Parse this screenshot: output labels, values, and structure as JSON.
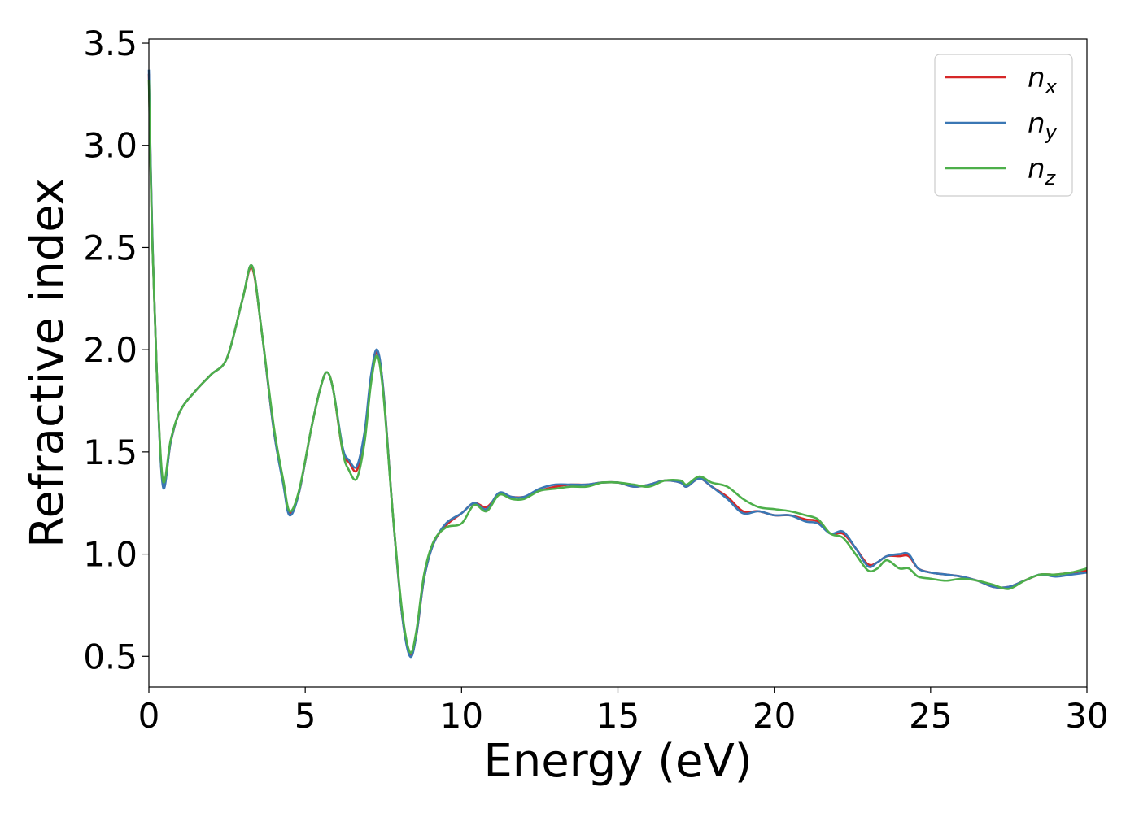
{
  "chart_data": {
    "type": "line",
    "xlabel": "Energy (eV)",
    "ylabel": "Refractive index",
    "xlim": [
      0,
      30
    ],
    "ylim": [
      0.35,
      3.52
    ],
    "xticks": [
      0,
      5,
      10,
      15,
      20,
      25,
      30
    ],
    "xtick_labels": [
      "0",
      "5",
      "10",
      "15",
      "20",
      "25",
      "30"
    ],
    "yticks": [
      0.5,
      1.0,
      1.5,
      2.0,
      2.5,
      3.0,
      3.5
    ],
    "ytick_labels": [
      "0.5",
      "1.0",
      "1.5",
      "2.0",
      "2.5",
      "3.0",
      "3.5"
    ],
    "grid": false,
    "legend_position": "top-right",
    "series": [
      {
        "name": "n",
        "subscript": "x",
        "color": "#d62728",
        "x": [
          0,
          0.1,
          0.25,
          0.45,
          0.7,
          1.0,
          1.5,
          2.0,
          2.5,
          3.0,
          3.3,
          3.6,
          4.0,
          4.3,
          4.5,
          4.8,
          5.2,
          5.5,
          5.7,
          5.9,
          6.2,
          6.4,
          6.65,
          6.9,
          7.1,
          7.3,
          7.5,
          7.8,
          8.1,
          8.35,
          8.55,
          8.8,
          9.1,
          9.5,
          10.0,
          10.4,
          10.8,
          11.2,
          11.6,
          12.0,
          12.5,
          13.0,
          13.5,
          14.0,
          14.5,
          15.0,
          15.5,
          16.0,
          16.5,
          17.0,
          17.2,
          17.6,
          18.0,
          18.5,
          19.0,
          19.5,
          20.0,
          20.5,
          21.0,
          21.4,
          21.8,
          22.2,
          22.6,
          23.0,
          23.3,
          23.6,
          24.0,
          24.3,
          24.6,
          25.0,
          25.5,
          26.0,
          26.5,
          27.0,
          27.5,
          28.0,
          28.5,
          29.0,
          29.5,
          30.0
        ],
        "y": [
          3.35,
          2.6,
          1.9,
          1.34,
          1.55,
          1.7,
          1.8,
          1.88,
          1.96,
          2.25,
          2.4,
          2.1,
          1.6,
          1.35,
          1.2,
          1.3,
          1.62,
          1.82,
          1.89,
          1.8,
          1.5,
          1.45,
          1.41,
          1.58,
          1.85,
          1.99,
          1.8,
          1.2,
          0.7,
          0.51,
          0.6,
          0.88,
          1.05,
          1.14,
          1.2,
          1.25,
          1.23,
          1.29,
          1.28,
          1.28,
          1.31,
          1.33,
          1.34,
          1.34,
          1.35,
          1.35,
          1.33,
          1.34,
          1.36,
          1.35,
          1.33,
          1.37,
          1.33,
          1.28,
          1.21,
          1.21,
          1.19,
          1.19,
          1.17,
          1.16,
          1.1,
          1.1,
          1.03,
          0.95,
          0.96,
          0.99,
          0.99,
          0.99,
          0.93,
          0.91,
          0.9,
          0.89,
          0.87,
          0.84,
          0.84,
          0.87,
          0.9,
          0.9,
          0.91,
          0.92
        ]
      },
      {
        "name": "n",
        "subscript": "y",
        "color": "#3a77b4",
        "x": [
          0,
          0.1,
          0.25,
          0.45,
          0.7,
          1.0,
          1.5,
          2.0,
          2.5,
          3.0,
          3.3,
          3.6,
          4.0,
          4.3,
          4.5,
          4.8,
          5.2,
          5.5,
          5.7,
          5.9,
          6.2,
          6.4,
          6.65,
          6.9,
          7.1,
          7.3,
          7.5,
          7.8,
          8.1,
          8.35,
          8.55,
          8.8,
          9.1,
          9.5,
          10.0,
          10.4,
          10.8,
          11.2,
          11.6,
          12.0,
          12.5,
          13.0,
          13.5,
          14.0,
          14.5,
          15.0,
          15.5,
          16.0,
          16.5,
          17.0,
          17.2,
          17.6,
          18.0,
          18.5,
          19.0,
          19.5,
          20.0,
          20.5,
          21.0,
          21.4,
          21.8,
          22.2,
          22.6,
          23.0,
          23.3,
          23.6,
          24.0,
          24.3,
          24.6,
          25.0,
          25.5,
          26.0,
          26.5,
          27.0,
          27.5,
          28.0,
          28.5,
          29.0,
          29.5,
          30.0
        ],
        "y": [
          3.37,
          2.62,
          1.9,
          1.33,
          1.55,
          1.7,
          1.8,
          1.88,
          1.96,
          2.25,
          2.41,
          2.1,
          1.6,
          1.34,
          1.19,
          1.3,
          1.62,
          1.82,
          1.89,
          1.8,
          1.52,
          1.46,
          1.43,
          1.6,
          1.87,
          2.0,
          1.8,
          1.2,
          0.7,
          0.5,
          0.6,
          0.88,
          1.05,
          1.15,
          1.2,
          1.25,
          1.22,
          1.3,
          1.28,
          1.28,
          1.32,
          1.34,
          1.34,
          1.34,
          1.35,
          1.35,
          1.33,
          1.34,
          1.36,
          1.35,
          1.33,
          1.37,
          1.33,
          1.27,
          1.2,
          1.21,
          1.19,
          1.19,
          1.16,
          1.15,
          1.1,
          1.11,
          1.03,
          0.94,
          0.96,
          0.99,
          1.0,
          1.0,
          0.93,
          0.91,
          0.9,
          0.89,
          0.87,
          0.84,
          0.84,
          0.87,
          0.9,
          0.89,
          0.9,
          0.91
        ]
      },
      {
        "name": "n",
        "subscript": "z",
        "color": "#4daf4a",
        "x": [
          0,
          0.1,
          0.25,
          0.45,
          0.7,
          1.0,
          1.5,
          2.0,
          2.5,
          3.0,
          3.3,
          3.6,
          4.0,
          4.3,
          4.5,
          4.8,
          5.2,
          5.5,
          5.7,
          5.9,
          6.2,
          6.4,
          6.65,
          6.9,
          7.1,
          7.3,
          7.5,
          7.8,
          8.1,
          8.35,
          8.55,
          8.8,
          9.1,
          9.5,
          10.0,
          10.4,
          10.8,
          11.2,
          11.6,
          12.0,
          12.5,
          13.0,
          13.5,
          14.0,
          14.5,
          15.0,
          15.5,
          16.0,
          16.5,
          17.0,
          17.2,
          17.6,
          18.0,
          18.5,
          19.0,
          19.5,
          20.0,
          20.5,
          21.0,
          21.4,
          21.8,
          22.2,
          22.6,
          23.0,
          23.3,
          23.6,
          24.0,
          24.3,
          24.6,
          25.0,
          25.5,
          26.0,
          26.5,
          27.0,
          27.5,
          28.0,
          28.5,
          29.0,
          29.5,
          30.0
        ],
        "y": [
          3.32,
          2.58,
          1.9,
          1.36,
          1.56,
          1.7,
          1.8,
          1.88,
          1.96,
          2.25,
          2.41,
          2.1,
          1.62,
          1.36,
          1.21,
          1.31,
          1.62,
          1.82,
          1.89,
          1.8,
          1.5,
          1.41,
          1.37,
          1.55,
          1.83,
          1.97,
          1.78,
          1.2,
          0.72,
          0.52,
          0.62,
          0.9,
          1.06,
          1.13,
          1.15,
          1.24,
          1.21,
          1.29,
          1.27,
          1.27,
          1.31,
          1.32,
          1.33,
          1.33,
          1.35,
          1.35,
          1.34,
          1.33,
          1.36,
          1.36,
          1.34,
          1.38,
          1.35,
          1.33,
          1.27,
          1.23,
          1.22,
          1.21,
          1.19,
          1.17,
          1.1,
          1.08,
          1.0,
          0.92,
          0.93,
          0.97,
          0.93,
          0.93,
          0.89,
          0.88,
          0.87,
          0.88,
          0.87,
          0.85,
          0.83,
          0.87,
          0.9,
          0.9,
          0.91,
          0.93
        ]
      }
    ]
  }
}
